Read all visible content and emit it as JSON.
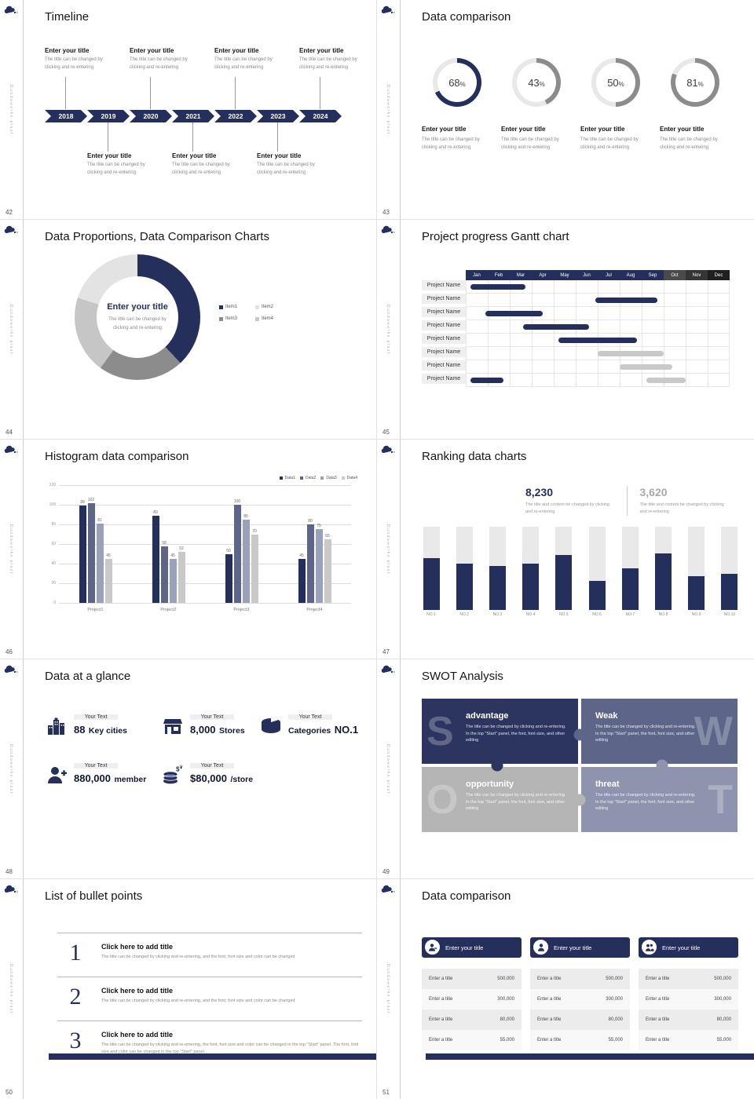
{
  "brand": {
    "vertical_text": "Dundaworks plast"
  },
  "pages": [
    "42",
    "43",
    "44",
    "45",
    "46",
    "47",
    "48",
    "49",
    "50",
    "51"
  ],
  "colors": {
    "navy": "#252f5c",
    "slate": "#5d6689",
    "gray": "#8c8c8c",
    "bar_gray": "#c9c9c9"
  },
  "slides": {
    "s42": {
      "title": "Timeline",
      "years": [
        "2018",
        "2019",
        "2020",
        "2021",
        "2022",
        "2023",
        "2024"
      ],
      "top_cols": [
        0,
        2,
        4,
        6
      ],
      "bottom_cols": [
        1,
        3,
        5
      ],
      "entry_title": "Enter your title",
      "entry_body": "The title can be changed by clicking and re-entering"
    },
    "s43": {
      "title": "Data comparison",
      "unit": "%",
      "item_title": "Enter your title",
      "item_body": "The title can be changed by clicking and re-entering",
      "items": [
        {
          "pct": "68",
          "color": "#252f5c"
        },
        {
          "pct": "43",
          "color": "#8c8c8c"
        },
        {
          "pct": "50",
          "color": "#8c8c8c"
        },
        {
          "pct": "81",
          "color": "#8c8c8c"
        }
      ]
    },
    "s44": {
      "title": "Data Proportions, Data Comparison Charts",
      "center_title": "Enter your title",
      "center_body": "The title can be changed by clicking and re-entering",
      "segments": [
        {
          "value": 38,
          "color": "#252f5c"
        },
        {
          "value": 22,
          "color": "#8c8c8c"
        },
        {
          "value": 20,
          "color": "#c6c6c6"
        },
        {
          "value": 20,
          "color": "#e3e3e3"
        }
      ],
      "legend": [
        {
          "label": "Item1",
          "color": "#252f5c"
        },
        {
          "label": "Item2",
          "color": "#e3e3e3"
        },
        {
          "label": "Item3",
          "color": "#8c8c8c"
        },
        {
          "label": "Item4",
          "color": "#c6c6c6"
        }
      ]
    },
    "s45": {
      "title": "Project progress Gantt chart",
      "months": [
        "Jan",
        "Feb",
        "Mar",
        "Apr",
        "May",
        "Jun",
        "Jul",
        "Aug",
        "Sep",
        "Oct",
        "Nov",
        "Dec"
      ],
      "row_label": "Project Name",
      "rows": [
        {
          "bars": [
            {
              "start": 0.2,
              "span": 2.5,
              "color": "navy"
            }
          ]
        },
        {
          "bars": [
            {
              "start": 5.9,
              "span": 2.8,
              "color": "navy"
            }
          ]
        },
        {
          "bars": [
            {
              "start": 0.9,
              "span": 2.6,
              "color": "navy"
            }
          ]
        },
        {
          "bars": [
            {
              "start": 2.6,
              "span": 3.0,
              "color": "navy"
            }
          ]
        },
        {
          "bars": [
            {
              "start": 4.2,
              "span": 3.6,
              "color": "navy"
            }
          ]
        },
        {
          "bars": [
            {
              "start": 6.0,
              "span": 3.0,
              "color": "gray"
            }
          ]
        },
        {
          "bars": [
            {
              "start": 7.0,
              "span": 2.4,
              "color": "gray"
            }
          ]
        },
        {
          "bars": [
            {
              "start": 0.2,
              "span": 1.5,
              "color": "navy"
            },
            {
              "start": 8.2,
              "span": 1.8,
              "color": "gray"
            }
          ]
        }
      ]
    },
    "s46": {
      "title": "Histogram data comparison",
      "chart": {
        "type": "bar",
        "categories": [
          "Project1",
          "Project2",
          "Project3",
          "Project4"
        ],
        "series": [
          {
            "name": "Data1",
            "color": "#252f5c",
            "values": [
              99,
              89,
              50,
              45
            ]
          },
          {
            "name": "Data2",
            "color": "#5d6689",
            "values": [
              102,
              58,
              100,
              80
            ]
          },
          {
            "name": "Data3",
            "color": "#9aa1bb",
            "values": [
              81,
              45,
              85,
              75
            ]
          },
          {
            "name": "Data4",
            "color": "#c9c9c9",
            "values": [
              45,
              52,
              70,
              65
            ]
          }
        ],
        "ymax": 120,
        "ystep": 20
      }
    },
    "s47": {
      "title": "Ranking data charts",
      "stat1": {
        "value": "8,230",
        "body": "The title and content be changed by clicking and re-entering"
      },
      "stat2": {
        "value": "3,620",
        "body": "The title and content be changed by clicking and re-entering"
      },
      "bars": {
        "labels": [
          "NO.1",
          "NO.2",
          "NO.3",
          "NO.4",
          "NO.5",
          "NO.6",
          "NO.7",
          "NO.8",
          "NO.9",
          "NO.10"
        ],
        "values": [
          62,
          55,
          52,
          55,
          66,
          35,
          50,
          68,
          40,
          43
        ]
      }
    },
    "s48": {
      "title": "Data at a glance",
      "label": "Your Text",
      "items": [
        {
          "icon": "city-icon",
          "big": "88",
          "rest": "Key cities"
        },
        {
          "icon": "store-icon",
          "big": "8,000",
          "rest": "Stores"
        },
        {
          "icon": "category-icon",
          "pre": "Categories",
          "big": "NO.1"
        },
        {
          "icon": "member-icon",
          "big": "880,000",
          "rest": "member"
        },
        {
          "icon": "coins-icon",
          "big": "$80,000",
          "rest": "/store"
        }
      ]
    },
    "s49": {
      "title": "SWOT Analysis",
      "body": "The title can be changed by clicking and re-entering. In the top \"Start\" panel, the font, font size, and other editing",
      "quads": [
        {
          "letter": "S",
          "name": "advantage",
          "color": "#2b355f"
        },
        {
          "letter": "W",
          "name": "Weak",
          "color": "#5d6689"
        },
        {
          "letter": "O",
          "name": "opportunity",
          "color": "#b5b5b5"
        },
        {
          "letter": "T",
          "name": "threat",
          "color": "#8e94ad"
        }
      ]
    },
    "s50": {
      "title": "List of bullet points",
      "items": [
        {
          "num": "1",
          "title": "Click here to add title",
          "body": "The title can be changed by clicking and re-entering, and the font, font size and color can be changed"
        },
        {
          "num": "2",
          "title": "Click here to add title",
          "body": "The title can be changed by clicking and re-entering, and the font, font size and color can be changed"
        },
        {
          "num": "3",
          "title": "Click here to add title",
          "body": "The title can be changed by clicking and re-entering, the font, font size and color can be changed in the top \"Start\" panel. The font, font size and color can be changed in the top \"Start\" panel."
        }
      ]
    },
    "s51": {
      "title": "Data comparison",
      "card_title": "Enter your title",
      "rows": [
        {
          "label": "Enter a title",
          "value": "500,000"
        },
        {
          "label": "Enter a title",
          "value": "300,000"
        },
        {
          "label": "Enter a title",
          "value": "80,000"
        },
        {
          "label": "Enter a title",
          "value": "55,000"
        }
      ]
    }
  }
}
